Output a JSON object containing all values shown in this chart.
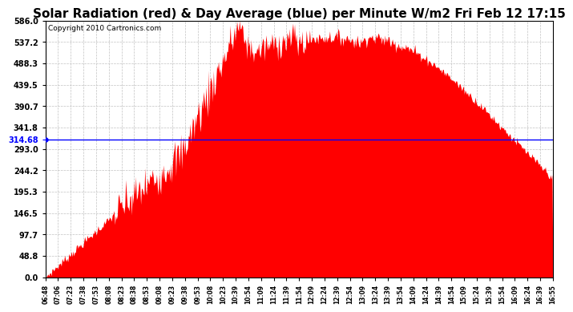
{
  "title": "Solar Radiation (red) & Day Average (blue) per Minute W/m2 Fri Feb 12 17:15",
  "copyright_text": "Copyright 2010 Cartronics.com",
  "avg_value": 314.68,
  "y_max": 586.0,
  "y_min": 0.0,
  "y_ticks": [
    0.0,
    48.8,
    97.7,
    146.5,
    195.3,
    244.2,
    293.0,
    341.8,
    390.7,
    439.5,
    488.3,
    537.2,
    586.0
  ],
  "x_tick_labels": [
    "06:48",
    "07:06",
    "07:23",
    "07:38",
    "07:53",
    "08:08",
    "08:23",
    "08:38",
    "08:53",
    "09:08",
    "09:23",
    "09:38",
    "09:53",
    "10:08",
    "10:23",
    "10:39",
    "10:54",
    "11:09",
    "11:24",
    "11:39",
    "11:54",
    "12:09",
    "12:24",
    "12:39",
    "12:54",
    "13:09",
    "13:24",
    "13:39",
    "13:54",
    "14:09",
    "14:24",
    "14:39",
    "14:54",
    "15:09",
    "15:24",
    "15:39",
    "15:54",
    "16:09",
    "16:24",
    "16:39",
    "16:55"
  ],
  "fill_color": "#FF0000",
  "line_color": "#0000FF",
  "background_color": "#FFFFFF",
  "grid_color": "#BBBBBB",
  "title_fontsize": 11,
  "copyright_fontsize": 6.5
}
